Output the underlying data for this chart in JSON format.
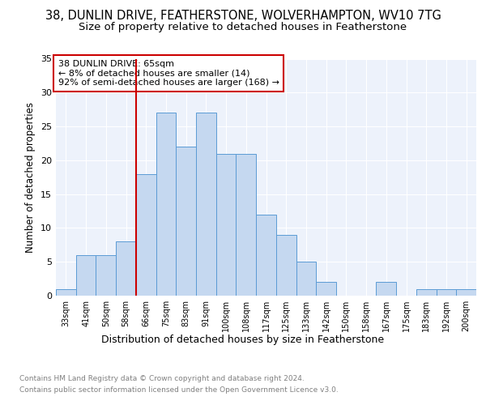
{
  "title1": "38, DUNLIN DRIVE, FEATHERSTONE, WOLVERHAMPTON, WV10 7TG",
  "title2": "Size of property relative to detached houses in Featherstone",
  "xlabel": "Distribution of detached houses by size in Featherstone",
  "ylabel": "Number of detached properties",
  "bar_labels": [
    "33sqm",
    "41sqm",
    "50sqm",
    "58sqm",
    "66sqm",
    "75sqm",
    "83sqm",
    "91sqm",
    "100sqm",
    "108sqm",
    "117sqm",
    "125sqm",
    "133sqm",
    "142sqm",
    "150sqm",
    "158sqm",
    "167sqm",
    "175sqm",
    "183sqm",
    "192sqm",
    "200sqm"
  ],
  "bar_values": [
    1,
    6,
    6,
    8,
    18,
    27,
    22,
    27,
    21,
    21,
    12,
    9,
    5,
    2,
    0,
    0,
    2,
    0,
    1,
    1,
    1
  ],
  "bar_color": "#c5d8f0",
  "bar_edge_color": "#5b9bd5",
  "vline_color": "#cc0000",
  "annotation_title": "38 DUNLIN DRIVE: 65sqm",
  "annotation_line1": "← 8% of detached houses are smaller (14)",
  "annotation_line2": "92% of semi-detached houses are larger (168) →",
  "annotation_box_color": "#cc0000",
  "ylim": [
    0,
    35
  ],
  "yticks": [
    0,
    5,
    10,
    15,
    20,
    25,
    30,
    35
  ],
  "footnote1": "Contains HM Land Registry data © Crown copyright and database right 2024.",
  "footnote2": "Contains public sector information licensed under the Open Government Licence v3.0.",
  "background_color": "#edf2fb",
  "title1_fontsize": 10.5,
  "title2_fontsize": 9.5,
  "xlabel_fontsize": 9,
  "ylabel_fontsize": 8.5,
  "footnote_fontsize": 6.5,
  "annotation_fontsize": 8
}
